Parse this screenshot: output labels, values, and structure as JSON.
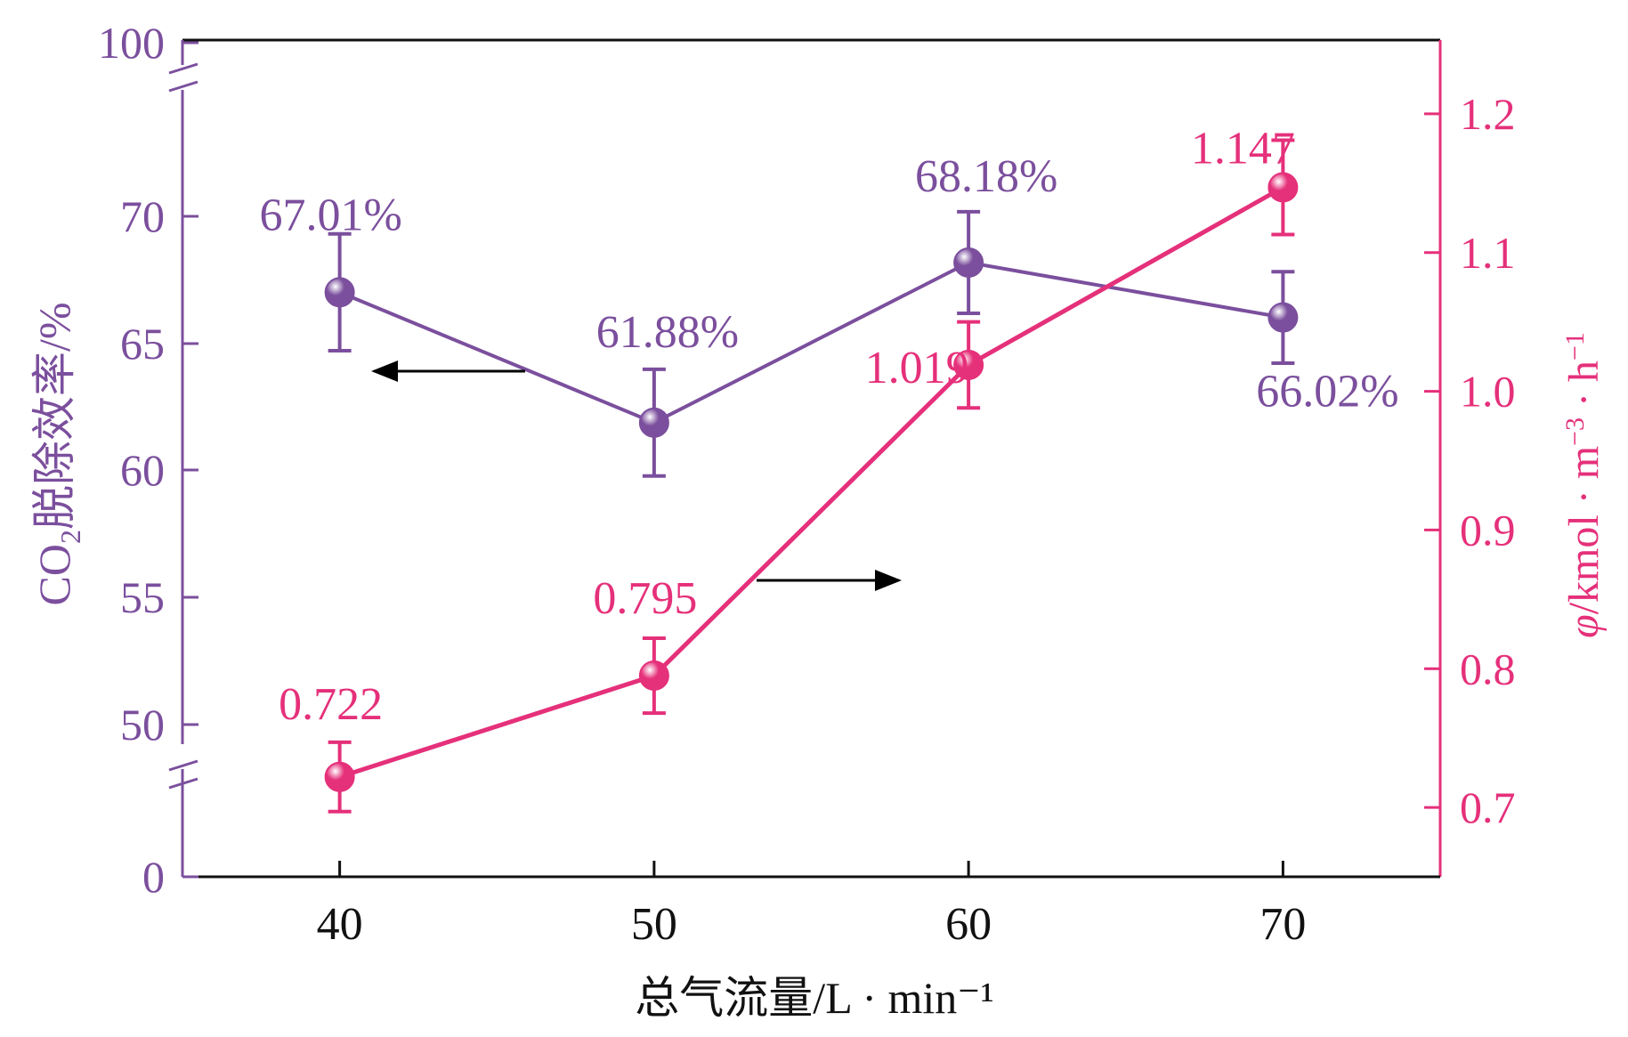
{
  "chart_data": {
    "type": "line",
    "xlabel": "总气流量/L · min⁻¹",
    "x": [
      40,
      50,
      60,
      70
    ],
    "xlim": [
      35,
      75
    ],
    "x_ticks": [
      "40",
      "50",
      "60",
      "70"
    ],
    "left_axis": {
      "label_parts": [
        "CO",
        "2",
        "脱除效率/%"
      ],
      "color": "#7b4f9d",
      "ticks": [
        "100",
        "70",
        "65",
        "60",
        "55",
        "50",
        "0"
      ],
      "broken": true,
      "segment_range": [
        50,
        70
      ]
    },
    "right_axis": {
      "label_parts": [
        "φ",
        "/kmol · m",
        "−3",
        " · h",
        "−1"
      ],
      "color": "#e5307a",
      "ticks": [
        "0.7",
        "0.8",
        "0.9",
        "1.0",
        "1.1",
        "1.2"
      ],
      "ylim": [
        0.65,
        1.25
      ]
    },
    "series": [
      {
        "name": "CO2 removal efficiency",
        "axis": "left",
        "color": "#7b4f9d",
        "values": [
          67.01,
          61.88,
          68.18,
          66.02
        ],
        "error": [
          2.3,
          2.1,
          2.0,
          1.8
        ],
        "labels": [
          "67.01%",
          "61.88%",
          "68.18%",
          "66.02%"
        ],
        "arrow": "left"
      },
      {
        "name": "φ",
        "axis": "right",
        "color": "#e5307a",
        "values": [
          0.722,
          0.795,
          1.019,
          1.147
        ],
        "error": [
          0.025,
          0.027,
          0.031,
          0.034
        ],
        "labels": [
          "0.722",
          "0.795",
          "1.019",
          "1.147"
        ],
        "arrow": "right"
      }
    ]
  }
}
